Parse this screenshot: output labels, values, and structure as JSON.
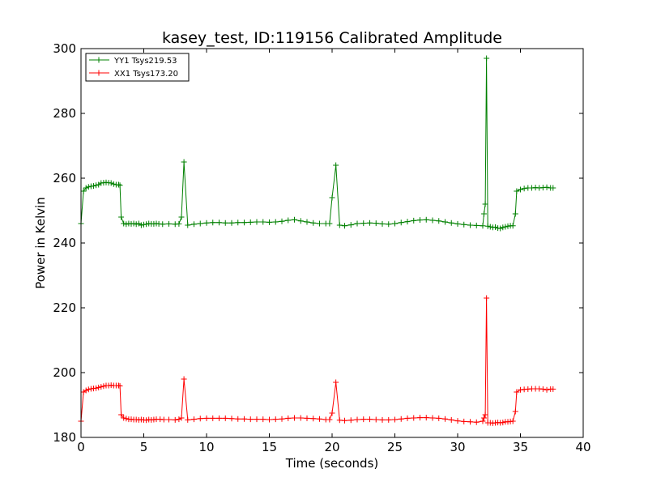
{
  "chart_data": {
    "type": "line",
    "title": "kasey_test, ID:119156 Calibrated Amplitude",
    "xlabel": "Time (seconds)",
    "ylabel": "Power in Kelvin",
    "xlim": [
      0,
      40
    ],
    "ylim": [
      180,
      300
    ],
    "xticks": [
      0,
      5,
      10,
      15,
      20,
      25,
      30,
      35,
      40
    ],
    "yticks": [
      180,
      200,
      220,
      240,
      260,
      280,
      300
    ],
    "grid": false,
    "legend_position": "top-left",
    "marker": "+",
    "series": [
      {
        "name": "YY1 Tsys219.53",
        "color": "#008000",
        "points": [
          [
            0.0,
            246
          ],
          [
            0.2,
            256
          ],
          [
            0.4,
            257
          ],
          [
            0.6,
            257.3
          ],
          [
            0.8,
            257.5
          ],
          [
            1.0,
            257.6
          ],
          [
            1.2,
            257.8
          ],
          [
            1.4,
            258
          ],
          [
            1.6,
            258.5
          ],
          [
            1.8,
            258.6
          ],
          [
            2.0,
            258.7
          ],
          [
            2.2,
            258.6
          ],
          [
            2.4,
            258.5
          ],
          [
            2.6,
            258.2
          ],
          [
            2.8,
            258
          ],
          [
            3.0,
            258
          ],
          [
            3.1,
            257.8
          ],
          [
            3.2,
            248
          ],
          [
            3.4,
            246
          ],
          [
            3.6,
            245.8
          ],
          [
            3.8,
            246
          ],
          [
            4.0,
            245.9
          ],
          [
            4.2,
            246
          ],
          [
            4.4,
            245.8
          ],
          [
            4.6,
            246
          ],
          [
            4.8,
            245.5
          ],
          [
            5.0,
            245.7
          ],
          [
            5.2,
            245.8
          ],
          [
            5.4,
            246
          ],
          [
            5.6,
            245.9
          ],
          [
            5.8,
            245.9
          ],
          [
            6.0,
            246
          ],
          [
            6.2,
            245.9
          ],
          [
            6.5,
            245.8
          ],
          [
            7.0,
            245.9
          ],
          [
            7.5,
            245.8
          ],
          [
            7.8,
            245.9
          ],
          [
            8.0,
            248
          ],
          [
            8.2,
            265
          ],
          [
            8.5,
            245.5
          ],
          [
            9.0,
            245.8
          ],
          [
            9.5,
            246
          ],
          [
            10.0,
            246.2
          ],
          [
            10.5,
            246.3
          ],
          [
            11.0,
            246.3
          ],
          [
            11.5,
            246.2
          ],
          [
            12.0,
            246.2
          ],
          [
            12.5,
            246.3
          ],
          [
            13.0,
            246.3
          ],
          [
            13.5,
            246.4
          ],
          [
            14.0,
            246.5
          ],
          [
            14.5,
            246.5
          ],
          [
            15.0,
            246.4
          ],
          [
            15.5,
            246.5
          ],
          [
            16.0,
            246.7
          ],
          [
            16.5,
            247
          ],
          [
            17.0,
            247.2
          ],
          [
            17.5,
            246.8
          ],
          [
            18.0,
            246.5
          ],
          [
            18.5,
            246.2
          ],
          [
            19.0,
            246
          ],
          [
            19.5,
            246
          ],
          [
            19.8,
            246
          ],
          [
            20.0,
            254
          ],
          [
            20.3,
            264
          ],
          [
            20.6,
            245.5
          ],
          [
            21.0,
            245.3
          ],
          [
            21.5,
            245.6
          ],
          [
            22.0,
            246
          ],
          [
            22.5,
            246.1
          ],
          [
            23.0,
            246.2
          ],
          [
            23.5,
            246.1
          ],
          [
            24.0,
            245.9
          ],
          [
            24.5,
            245.8
          ],
          [
            25.0,
            246
          ],
          [
            25.5,
            246.3
          ],
          [
            26.0,
            246.6
          ],
          [
            26.5,
            246.9
          ],
          [
            27.0,
            247.1
          ],
          [
            27.5,
            247.2
          ],
          [
            28.0,
            247
          ],
          [
            28.5,
            246.8
          ],
          [
            29.0,
            246.5
          ],
          [
            29.5,
            246.2
          ],
          [
            30.0,
            245.9
          ],
          [
            30.5,
            245.7
          ],
          [
            31.0,
            245.5
          ],
          [
            31.5,
            245.4
          ],
          [
            32.0,
            245.3
          ],
          [
            32.1,
            249
          ],
          [
            32.2,
            252
          ],
          [
            32.3,
            297
          ],
          [
            32.4,
            245.2
          ],
          [
            32.6,
            245
          ],
          [
            32.8,
            244.8
          ],
          [
            33.0,
            244.9
          ],
          [
            33.2,
            244.6
          ],
          [
            33.4,
            244.5
          ],
          [
            33.6,
            244.8
          ],
          [
            33.8,
            245
          ],
          [
            34.0,
            245.2
          ],
          [
            34.2,
            245.3
          ],
          [
            34.4,
            245.3
          ],
          [
            34.6,
            249
          ],
          [
            34.7,
            256
          ],
          [
            35.0,
            256.5
          ],
          [
            35.3,
            256.8
          ],
          [
            35.6,
            257
          ],
          [
            35.9,
            257
          ],
          [
            36.2,
            257.1
          ],
          [
            36.5,
            257
          ],
          [
            36.8,
            257.1
          ],
          [
            37.1,
            257.2
          ],
          [
            37.4,
            257
          ],
          [
            37.6,
            257
          ]
        ]
      },
      {
        "name": "XX1 Tsys173.20",
        "color": "#ff0000",
        "points": [
          [
            0.0,
            185
          ],
          [
            0.2,
            194
          ],
          [
            0.4,
            194.5
          ],
          [
            0.6,
            194.8
          ],
          [
            0.8,
            195
          ],
          [
            1.0,
            195.1
          ],
          [
            1.2,
            195.2
          ],
          [
            1.4,
            195.4
          ],
          [
            1.6,
            195.6
          ],
          [
            1.8,
            195.8
          ],
          [
            2.0,
            196
          ],
          [
            2.2,
            196
          ],
          [
            2.4,
            196.1
          ],
          [
            2.6,
            196
          ],
          [
            2.8,
            196
          ],
          [
            3.0,
            196
          ],
          [
            3.1,
            195.9
          ],
          [
            3.2,
            187
          ],
          [
            3.4,
            186
          ],
          [
            3.6,
            185.8
          ],
          [
            3.8,
            185.6
          ],
          [
            4.0,
            185.6
          ],
          [
            4.2,
            185.5
          ],
          [
            4.4,
            185.5
          ],
          [
            4.6,
            185.4
          ],
          [
            4.8,
            185.5
          ],
          [
            5.0,
            185.4
          ],
          [
            5.2,
            185.3
          ],
          [
            5.4,
            185.5
          ],
          [
            5.6,
            185.4
          ],
          [
            5.8,
            185.5
          ],
          [
            6.0,
            185.6
          ],
          [
            6.3,
            185.6
          ],
          [
            6.6,
            185.5
          ],
          [
            7.0,
            185.5
          ],
          [
            7.5,
            185.4
          ],
          [
            7.8,
            185.6
          ],
          [
            8.0,
            186
          ],
          [
            8.2,
            198
          ],
          [
            8.5,
            185.4
          ],
          [
            9.0,
            185.6
          ],
          [
            9.5,
            185.8
          ],
          [
            10.0,
            185.9
          ],
          [
            10.5,
            185.9
          ],
          [
            11.0,
            185.9
          ],
          [
            11.5,
            185.9
          ],
          [
            12.0,
            185.8
          ],
          [
            12.5,
            185.7
          ],
          [
            13.0,
            185.7
          ],
          [
            13.5,
            185.6
          ],
          [
            14.0,
            185.6
          ],
          [
            14.5,
            185.6
          ],
          [
            15.0,
            185.5
          ],
          [
            15.5,
            185.6
          ],
          [
            16.0,
            185.7
          ],
          [
            16.5,
            185.9
          ],
          [
            17.0,
            186
          ],
          [
            17.5,
            186
          ],
          [
            18.0,
            185.9
          ],
          [
            18.5,
            185.8
          ],
          [
            19.0,
            185.7
          ],
          [
            19.5,
            185.5
          ],
          [
            19.8,
            185.5
          ],
          [
            20.0,
            187.5
          ],
          [
            20.3,
            197
          ],
          [
            20.6,
            185.3
          ],
          [
            21.0,
            185.2
          ],
          [
            21.5,
            185.3
          ],
          [
            22.0,
            185.5
          ],
          [
            22.5,
            185.6
          ],
          [
            23.0,
            185.6
          ],
          [
            23.5,
            185.5
          ],
          [
            24.0,
            185.4
          ],
          [
            24.5,
            185.4
          ],
          [
            25.0,
            185.5
          ],
          [
            25.5,
            185.7
          ],
          [
            26.0,
            185.9
          ],
          [
            26.5,
            186
          ],
          [
            27.0,
            186.1
          ],
          [
            27.5,
            186.1
          ],
          [
            28.0,
            186
          ],
          [
            28.5,
            185.9
          ],
          [
            29.0,
            185.7
          ],
          [
            29.5,
            185.4
          ],
          [
            30.0,
            185.1
          ],
          [
            30.5,
            184.9
          ],
          [
            31.0,
            184.8
          ],
          [
            31.5,
            184.7
          ],
          [
            32.0,
            185
          ],
          [
            32.1,
            186
          ],
          [
            32.2,
            187
          ],
          [
            32.3,
            223
          ],
          [
            32.4,
            184.5
          ],
          [
            32.6,
            184.5
          ],
          [
            32.8,
            184.4
          ],
          [
            33.0,
            184.5
          ],
          [
            33.2,
            184.6
          ],
          [
            33.4,
            184.5
          ],
          [
            33.6,
            184.6
          ],
          [
            33.8,
            184.8
          ],
          [
            34.0,
            184.8
          ],
          [
            34.2,
            184.9
          ],
          [
            34.4,
            185
          ],
          [
            34.6,
            188
          ],
          [
            34.7,
            194
          ],
          [
            35.0,
            194.7
          ],
          [
            35.3,
            194.8
          ],
          [
            35.6,
            194.9
          ],
          [
            35.9,
            195
          ],
          [
            36.2,
            195
          ],
          [
            36.5,
            195
          ],
          [
            36.8,
            194.9
          ],
          [
            37.1,
            194.7
          ],
          [
            37.4,
            194.9
          ],
          [
            37.6,
            194.9
          ]
        ]
      }
    ]
  }
}
